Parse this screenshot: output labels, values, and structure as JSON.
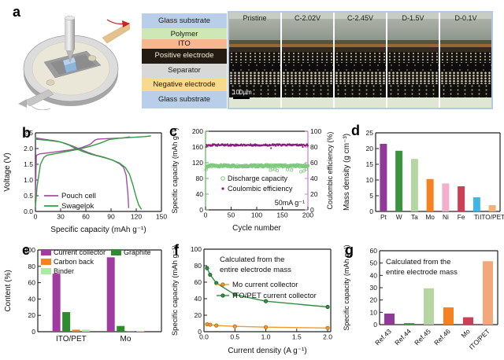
{
  "panels": {
    "a": {
      "letter": "a",
      "stack_layers": [
        {
          "label": "Glass substrate",
          "bg": "#b9cfe9",
          "fg": "#1a1a1a",
          "h": 17
        },
        {
          "label": "Polymer",
          "bg": "#cde7b5",
          "fg": "#1a1a1a",
          "h": 12
        },
        {
          "label": "ITO",
          "bg": "#f6b68e",
          "fg": "#1a1a1a",
          "h": 10
        },
        {
          "label": "Positive electrode",
          "bg": "#241b12",
          "fg": "#f2ead8",
          "h": 17
        },
        {
          "label": "Separator",
          "bg": "#d8d8d8",
          "fg": "#1a1a1a",
          "h": 16
        },
        {
          "label": "Negative electrode",
          "bg": "#f8da8e",
          "fg": "#1a1a1a",
          "h": 15
        },
        {
          "label": "Glass substrate2",
          "bg": "#b9cfe9",
          "fg": "#1a1a1a",
          "h": 19,
          "display": "Glass substrate"
        }
      ],
      "micrograph_labels": [
        "Pristine",
        "C-2.02V",
        "C-2.45V",
        "D-1.5V",
        "D-0.1V"
      ],
      "scale_bar_label": "100μm"
    },
    "b": {
      "letter": "b"
    },
    "c": {
      "letter": "c"
    },
    "d": {
      "letter": "d"
    },
    "e": {
      "letter": "e"
    },
    "f": {
      "letter": "f"
    },
    "g": {
      "letter": "g"
    }
  },
  "chart_data": {
    "b": {
      "type": "line",
      "xlabel": "Specific capacity (mAh g⁻¹)",
      "ylabel": "Voltage (V)",
      "xlim": [
        0,
        150
      ],
      "xticks": [
        "0",
        "30",
        "60",
        "90",
        "120",
        "150"
      ],
      "ylim": [
        0,
        2.5
      ],
      "yticks": [
        "0.0",
        "0.5",
        "1.0",
        "1.5",
        "2.0",
        "2.5"
      ],
      "legend": [
        {
          "name": "Pouch cell",
          "color": "#a14fa3"
        },
        {
          "name": "Swagelok",
          "color": "#2f9e40"
        }
      ],
      "series": [
        {
          "name": "Pouch cell charge",
          "color": "#a14fa3",
          "points": [
            [
              0,
              0.4
            ],
            [
              1,
              1.78
            ],
            [
              5,
              1.83
            ],
            [
              20,
              1.88
            ],
            [
              40,
              1.95
            ],
            [
              55,
              2.03
            ],
            [
              65,
              2.13
            ],
            [
              71,
              2.27
            ],
            [
              74,
              2.3
            ],
            [
              90,
              2.32
            ],
            [
              105,
              2.34
            ],
            [
              112,
              2.37
            ]
          ]
        },
        {
          "name": "Pouch cell discharge",
          "color": "#a14fa3",
          "points": [
            [
              0,
              2.34
            ],
            [
              12,
              2.29
            ],
            [
              25,
              2.24
            ],
            [
              35,
              2.17
            ],
            [
              45,
              2.07
            ],
            [
              55,
              1.96
            ],
            [
              63,
              1.87
            ],
            [
              72,
              1.79
            ],
            [
              82,
              1.72
            ],
            [
              92,
              1.63
            ],
            [
              100,
              1.52
            ],
            [
              105,
              1.4
            ],
            [
              108,
              1.15
            ],
            [
              110,
              0.6
            ],
            [
              111,
              0.12
            ]
          ]
        },
        {
          "name": "Swagelok charge",
          "color": "#2f9e40",
          "points": [
            [
              0,
              0.15
            ],
            [
              2,
              0.8
            ],
            [
              6,
              1.5
            ],
            [
              10,
              1.72
            ],
            [
              14,
              1.79
            ],
            [
              30,
              1.87
            ],
            [
              50,
              1.97
            ],
            [
              65,
              2.07
            ],
            [
              78,
              2.18
            ],
            [
              88,
              2.29
            ],
            [
              100,
              2.33
            ],
            [
              118,
              2.36
            ],
            [
              130,
              2.38
            ],
            [
              137,
              2.4
            ]
          ]
        },
        {
          "name": "Swagelok discharge",
          "color": "#2f9e40",
          "points": [
            [
              0,
              2.3
            ],
            [
              15,
              2.26
            ],
            [
              30,
              2.21
            ],
            [
              40,
              2.11
            ],
            [
              48,
              2.0
            ],
            [
              56,
              1.91
            ],
            [
              66,
              1.82
            ],
            [
              78,
              1.74
            ],
            [
              90,
              1.65
            ],
            [
              100,
              1.54
            ],
            [
              107,
              1.4
            ],
            [
              112,
              1.18
            ],
            [
              116,
              0.85
            ],
            [
              120,
              0.45
            ],
            [
              123,
              0.2
            ],
            [
              126,
              0.08
            ]
          ]
        }
      ]
    },
    "c": {
      "type": "scatter",
      "xlabel": "Cycle number",
      "ylabel_left": "Specific capacity (mAh g⁻¹)",
      "ylabel_right": "Coulombic efficiency (%)",
      "xlim": [
        0,
        200
      ],
      "xticks": [
        "0",
        "50",
        "100",
        "150",
        "200"
      ],
      "ylim_left": [
        0,
        200
      ],
      "yticks_left": [
        "0",
        "40",
        "80",
        "120",
        "160",
        "200"
      ],
      "ylim_right": [
        0,
        100
      ],
      "yticks_right": [
        "0",
        "20",
        "40",
        "60",
        "80",
        "100"
      ],
      "annotation": "50mA g⁻¹",
      "spine_left_color": "#5fae5f",
      "spine_right_color": "#c983c4",
      "series": [
        {
          "name": "Discharge capacity",
          "marker": "open-circle",
          "color": "#7ec97e",
          "axis": "left",
          "mean": 112,
          "spread": 2.5,
          "n": 200,
          "dips": [
            [
              1,
              102
            ],
            [
              2,
              107
            ],
            [
              3,
              110
            ],
            [
              127,
              101
            ],
            [
              131,
              104
            ],
            [
              136,
              103
            ],
            [
              140,
              100
            ],
            [
              160,
              103
            ],
            [
              168,
              101
            ],
            [
              186,
              97
            ],
            [
              192,
              99
            ],
            [
              197,
              104
            ]
          ]
        },
        {
          "name": "Coulombic efficiency",
          "marker": "dot",
          "color": "#8e1a7d",
          "axis": "right",
          "mean": 82.5,
          "spread": 1.2,
          "n": 200,
          "dips": [
            [
              1,
              80
            ],
            [
              128,
              78.5
            ],
            [
              190,
              80
            ]
          ]
        }
      ]
    },
    "d": {
      "type": "bar",
      "ylabel": "Mass density (g cm⁻³)",
      "ylim": [
        0,
        25
      ],
      "yticks": [
        "0",
        "5",
        "10",
        "15",
        "20",
        "25"
      ],
      "categories": [
        "Pt",
        "W",
        "Ta",
        "Mo",
        "Ni",
        "Fe",
        "Ti",
        "ITO/PET"
      ],
      "values": [
        21.5,
        19.3,
        16.7,
        10.3,
        8.9,
        8.0,
        4.5,
        2.0
      ],
      "colors": [
        "#8e3a96",
        "#3a9440",
        "#b5d6a2",
        "#f58220",
        "#f2aecb",
        "#cc3f55",
        "#41b6e6",
        "#f0b27a"
      ]
    },
    "e": {
      "type": "grouped-bar",
      "ylabel": "Content (%)",
      "ylim": [
        0,
        100
      ],
      "yticks": [
        "0",
        "20",
        "40",
        "60",
        "80",
        "100"
      ],
      "categories": [
        "ITO/PET",
        "Mo"
      ],
      "series": [
        {
          "name": "Current collector",
          "color": "#a03ba0",
          "values": [
            71,
            91
          ]
        },
        {
          "name": "Graphite",
          "color": "#2e8b2e",
          "values": [
            24,
            7
          ]
        },
        {
          "name": "Carbon back",
          "color": "#f58220",
          "values": [
            2.5,
            1
          ]
        },
        {
          "name": "Binder",
          "color": "#a8ecA0",
          "values": [
            2.5,
            1
          ]
        }
      ],
      "legend_order": [
        "Current collector",
        "Graphite",
        "Carbon back",
        "Binder"
      ]
    },
    "f": {
      "type": "line-scatter",
      "xlabel": "Current density (A g⁻¹)",
      "ylabel": "Specific capacity (mAh g⁻¹)",
      "xlim": [
        0,
        2.05
      ],
      "xticks": [
        "0.0",
        "0.5",
        "1.0",
        "1.5",
        "2.0"
      ],
      "ylim": [
        0,
        100
      ],
      "yticks": [
        "0",
        "20",
        "40",
        "60",
        "80",
        "100"
      ],
      "annotation": [
        "Calculated from the",
        "entire electrode mass"
      ],
      "series": [
        {
          "name": "Mo current collector",
          "color": "#f2982f",
          "edge": "#b26a10",
          "points": [
            [
              0.05,
              9
            ],
            [
              0.1,
              8.5
            ],
            [
              0.2,
              7.5
            ],
            [
              0.5,
              6.5
            ],
            [
              1.0,
              5.5
            ],
            [
              2.0,
              4.5
            ]
          ]
        },
        {
          "name": "ITO/PET current collector",
          "color": "#2f8f3f",
          "edge": "#1c5f2a",
          "points": [
            [
              0.05,
              77
            ],
            [
              0.1,
              69
            ],
            [
              0.2,
              59
            ],
            [
              0.5,
              45
            ],
            [
              1.0,
              37
            ],
            [
              2.0,
              30
            ]
          ]
        }
      ]
    },
    "g": {
      "type": "bar",
      "ylabel": "Specific capacity (mAh g⁻¹)",
      "ylim": [
        0,
        60
      ],
      "yticks": [
        "0",
        "10",
        "20",
        "30",
        "40",
        "50",
        "60"
      ],
      "categories": [
        "Ref.43",
        "Ref.44",
        "Ref.45",
        "Ref.46",
        "Mo",
        "ITO/PET"
      ],
      "values": [
        9,
        1.2,
        29.5,
        14,
        6,
        51.5
      ],
      "colors": [
        "#8e3a96",
        "#3a9440",
        "#b5d6a2",
        "#f58220",
        "#cc3f55",
        "#f2a878"
      ],
      "annotation": [
        "Calculated from the",
        "entire electrode mass"
      ],
      "rotate_labels": true
    }
  }
}
